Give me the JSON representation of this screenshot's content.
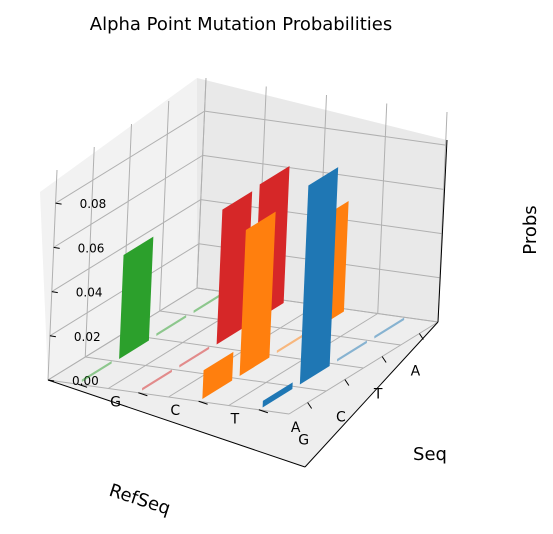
{
  "chart_data": {
    "type": "bar3d",
    "title": "Alpha Point Mutation Probabilities",
    "xlabel": "RefSeq",
    "ylabel": "Seq",
    "zlabel": "Probs",
    "x_categories": [
      "A",
      "T",
      "C",
      "G"
    ],
    "y_categories": [
      "A",
      "T",
      "C",
      "G"
    ],
    "zlim": [
      0,
      0.095
    ],
    "z_ticks": [
      "0.00",
      "0.02",
      "0.04",
      "0.06",
      "0.08"
    ],
    "grid": true,
    "series": [
      {
        "seq": "A",
        "color": "#1f77b4",
        "values": [
          0.0,
          0.0005,
          0.09,
          0.003
        ]
      },
      {
        "seq": "T",
        "color": "#ff7f0e",
        "values": [
          0.05,
          0.0,
          0.066,
          0.013
        ]
      },
      {
        "seq": "C",
        "color": "#d62728",
        "values": [
          0.062,
          0.061,
          0.0,
          0.0002
        ]
      },
      {
        "seq": "G",
        "color": "#2ca02c",
        "values": [
          0.0004,
          0.0,
          0.047,
          0.0
        ]
      }
    ]
  }
}
